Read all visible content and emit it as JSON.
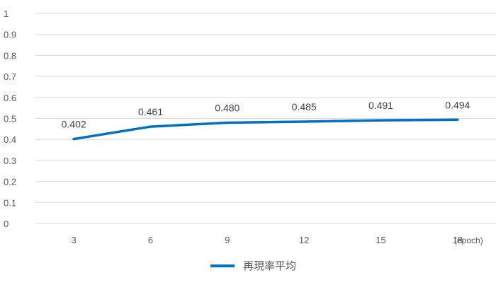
{
  "chart_data": {
    "type": "line",
    "categories": [
      "3",
      "6",
      "9",
      "12",
      "15",
      "18"
    ],
    "series": [
      {
        "name": "再現率平均",
        "values": [
          0.402,
          0.461,
          0.48,
          0.485,
          0.491,
          0.494
        ],
        "labels": [
          "0.402",
          "0.461",
          "0.480",
          "0.485",
          "0.491",
          "0.494"
        ],
        "color": "#0070c0"
      }
    ],
    "y_ticks": [
      "0",
      "0.1",
      "0.2",
      "0.3",
      "0.4",
      "0.5",
      "0.6",
      "0.7",
      "0.8",
      "0.9",
      "1"
    ],
    "ylim": [
      0,
      1
    ],
    "x_unit": "(epoch)",
    "grid": true,
    "grid_color": "#d9d9d9",
    "legend_position": "bottom"
  }
}
